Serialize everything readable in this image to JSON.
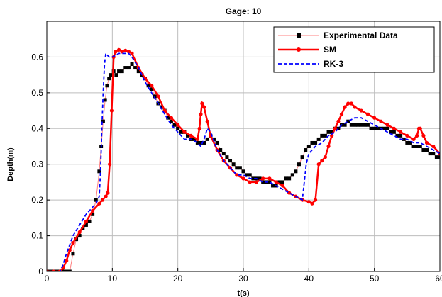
{
  "chart_data": {
    "type": "line",
    "title": "Gage: 10",
    "xlabel": "t(s)",
    "ylabel_bold": "Depth",
    "ylabel_unit": "(m)",
    "xlim": [
      0,
      60
    ],
    "ylim": [
      0,
      0.7
    ],
    "xticks": [
      0,
      10,
      20,
      30,
      40,
      50,
      60
    ],
    "yticks": [
      0,
      0.1,
      0.2,
      0.3,
      0.4,
      0.5,
      0.6
    ],
    "grid": true,
    "legend_position": "top-right",
    "series": [
      {
        "name": "Experimental Data",
        "color": "#ff8080",
        "marker_color": "#000000",
        "style": "line-square-markers",
        "x": [
          0,
          0.5,
          1,
          1.5,
          2,
          2.5,
          3,
          3.5,
          4,
          4.5,
          5,
          5.5,
          6,
          6.5,
          7,
          7.5,
          8,
          8.3,
          8.6,
          8.9,
          9.2,
          9.5,
          9.8,
          10.2,
          10.6,
          11,
          11.5,
          12,
          12.5,
          13,
          13.5,
          14,
          14.5,
          15,
          15.5,
          16,
          16.5,
          17,
          17.5,
          18,
          18.5,
          19,
          19.5,
          20,
          20.5,
          21,
          21.5,
          22,
          22.5,
          23,
          23.5,
          24,
          24.5,
          25,
          25.5,
          26,
          26.5,
          27,
          27.5,
          28,
          28.5,
          29,
          29.5,
          30,
          30.5,
          31,
          31.5,
          32,
          32.5,
          33,
          33.5,
          34,
          34.5,
          35,
          35.5,
          36,
          36.5,
          37,
          37.5,
          38,
          38.5,
          39,
          39.5,
          40,
          40.5,
          41,
          41.5,
          42,
          42.5,
          43,
          43.5,
          44,
          44.5,
          45,
          45.5,
          46,
          46.5,
          47,
          47.5,
          48,
          48.5,
          49,
          49.5,
          50,
          50.5,
          51,
          51.5,
          52,
          52.5,
          53,
          53.5,
          54,
          54.5,
          55,
          55.5,
          56,
          56.5,
          57,
          57.5,
          58,
          58.5,
          59,
          59.5,
          60
        ],
        "y": [
          0,
          0,
          0,
          0,
          0,
          0,
          0,
          0,
          0.05,
          0.09,
          0.1,
          0.12,
          0.13,
          0.14,
          0.16,
          0.2,
          0.28,
          0.35,
          0.42,
          0.48,
          0.52,
          0.54,
          0.55,
          0.56,
          0.55,
          0.56,
          0.56,
          0.57,
          0.57,
          0.58,
          0.57,
          0.56,
          0.55,
          0.54,
          0.52,
          0.51,
          0.49,
          0.47,
          0.46,
          0.45,
          0.43,
          0.42,
          0.41,
          0.4,
          0.39,
          0.39,
          0.38,
          0.37,
          0.37,
          0.36,
          0.36,
          0.36,
          0.37,
          0.38,
          0.37,
          0.36,
          0.34,
          0.33,
          0.32,
          0.31,
          0.3,
          0.29,
          0.29,
          0.28,
          0.27,
          0.27,
          0.26,
          0.26,
          0.26,
          0.25,
          0.25,
          0.25,
          0.24,
          0.24,
          0.25,
          0.25,
          0.26,
          0.26,
          0.27,
          0.28,
          0.3,
          0.32,
          0.34,
          0.35,
          0.36,
          0.36,
          0.37,
          0.38,
          0.38,
          0.39,
          0.39,
          0.4,
          0.4,
          0.41,
          0.41,
          0.42,
          0.41,
          0.41,
          0.41,
          0.41,
          0.41,
          0.41,
          0.4,
          0.4,
          0.4,
          0.4,
          0.4,
          0.4,
          0.39,
          0.39,
          0.38,
          0.38,
          0.37,
          0.36,
          0.36,
          0.35,
          0.35,
          0.35,
          0.34,
          0.34,
          0.33,
          0.33,
          0.32,
          0.32
        ]
      },
      {
        "name": "SM",
        "color": "#ff0000",
        "style": "line-circle-markers",
        "x": [
          0,
          1,
          2,
          2.5,
          3,
          3.5,
          4,
          5,
          6,
          7,
          8,
          8.5,
          9,
          9.3,
          9.6,
          9.9,
          10.2,
          10.5,
          11,
          11.5,
          12,
          12.5,
          13,
          14,
          15,
          16,
          17,
          18,
          19,
          20,
          21,
          22,
          23,
          23.3,
          23.5,
          23.7,
          24,
          24.5,
          25,
          26,
          27,
          28,
          29,
          30,
          31,
          32,
          33,
          34,
          35,
          36,
          37,
          38,
          39,
          40,
          40.5,
          41,
          41.5,
          42,
          42.5,
          43,
          43.5,
          44,
          44.5,
          45,
          45.5,
          46,
          46.5,
          47,
          48,
          49,
          50,
          51,
          52,
          53,
          54,
          55,
          56,
          56.5,
          56.8,
          57,
          57.5,
          58,
          59,
          60
        ],
        "y": [
          0,
          0,
          0,
          0.01,
          0.03,
          0.06,
          0.08,
          0.11,
          0.14,
          0.17,
          0.19,
          0.2,
          0.21,
          0.22,
          0.3,
          0.45,
          0.6,
          0.615,
          0.62,
          0.615,
          0.618,
          0.615,
          0.61,
          0.57,
          0.54,
          0.52,
          0.49,
          0.45,
          0.43,
          0.41,
          0.39,
          0.38,
          0.37,
          0.4,
          0.44,
          0.47,
          0.46,
          0.42,
          0.38,
          0.34,
          0.31,
          0.29,
          0.27,
          0.26,
          0.25,
          0.25,
          0.26,
          0.26,
          0.25,
          0.24,
          0.22,
          0.21,
          0.2,
          0.195,
          0.19,
          0.2,
          0.3,
          0.31,
          0.32,
          0.35,
          0.38,
          0.4,
          0.42,
          0.44,
          0.46,
          0.47,
          0.47,
          0.46,
          0.45,
          0.44,
          0.43,
          0.42,
          0.41,
          0.4,
          0.39,
          0.38,
          0.37,
          0.38,
          0.4,
          0.4,
          0.38,
          0.36,
          0.35,
          0.33
        ]
      },
      {
        "name": "RK-3",
        "color": "#0000ff",
        "style": "dashed",
        "x": [
          0,
          1,
          2,
          2.5,
          3,
          4,
          5,
          6,
          7,
          7.5,
          8,
          8.2,
          8.4,
          8.6,
          8.8,
          9,
          9.5,
          10,
          11,
          12,
          12.5,
          13,
          14,
          15,
          16,
          17,
          18,
          19,
          20,
          21,
          22,
          23,
          23.5,
          24,
          24.5,
          25,
          26,
          27,
          28,
          29,
          30,
          31,
          32,
          33,
          34,
          35,
          36,
          37,
          38,
          39,
          39.3,
          39.6,
          40,
          41,
          42,
          43,
          44,
          45,
          46,
          47,
          48,
          49,
          50,
          51,
          52,
          53,
          54,
          55,
          56,
          57,
          58,
          59,
          60
        ],
        "y": [
          0,
          0,
          0,
          0.02,
          0.05,
          0.1,
          0.13,
          0.16,
          0.18,
          0.19,
          0.21,
          0.28,
          0.4,
          0.5,
          0.58,
          0.61,
          0.6,
          0.6,
          0.61,
          0.61,
          0.61,
          0.6,
          0.57,
          0.53,
          0.5,
          0.47,
          0.44,
          0.41,
          0.39,
          0.37,
          0.37,
          0.36,
          0.35,
          0.37,
          0.4,
          0.39,
          0.34,
          0.31,
          0.29,
          0.27,
          0.27,
          0.26,
          0.26,
          0.25,
          0.25,
          0.24,
          0.23,
          0.22,
          0.21,
          0.2,
          0.25,
          0.3,
          0.33,
          0.35,
          0.36,
          0.38,
          0.39,
          0.41,
          0.42,
          0.43,
          0.43,
          0.42,
          0.41,
          0.4,
          0.39,
          0.38,
          0.37,
          0.37,
          0.36,
          0.36,
          0.35,
          0.34,
          0.33
        ]
      }
    ]
  }
}
